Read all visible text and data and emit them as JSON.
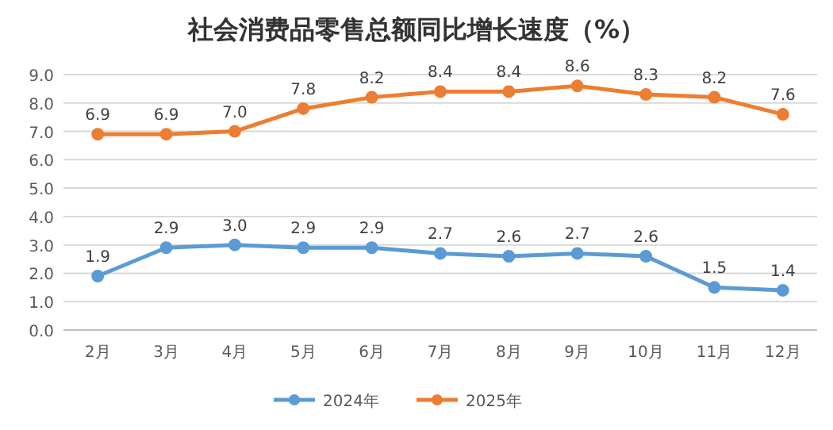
{
  "chart_data": {
    "type": "line",
    "title": "社会消费品零售总额同比增长速度（%）",
    "categories": [
      "2月",
      "3月",
      "4月",
      "5月",
      "6月",
      "7月",
      "8月",
      "9月",
      "10月",
      "11月",
      "12月"
    ],
    "series": [
      {
        "name": "2024年",
        "color": "#5b9bd5",
        "values": [
          1.9,
          2.9,
          3.0,
          2.9,
          2.9,
          2.7,
          2.6,
          2.7,
          2.6,
          1.5,
          1.4
        ],
        "value_labels": [
          "1.9",
          "2.9",
          "3.0",
          "2.9",
          "2.9",
          "2.7",
          "2.6",
          "2.7",
          "2.6",
          "1.5",
          "1.4"
        ]
      },
      {
        "name": "2025年",
        "color": "#ed7d31",
        "values": [
          6.9,
          6.9,
          7.0,
          7.8,
          8.2,
          8.4,
          8.4,
          8.6,
          8.3,
          8.2,
          7.6
        ],
        "value_labels": [
          "6.9",
          "6.9",
          "7.0",
          "7.8",
          "8.2",
          "8.4",
          "8.4",
          "8.6",
          "8.3",
          "8.2",
          "7.6"
        ]
      }
    ],
    "ylim": [
      0,
      9
    ],
    "yticks": [
      {
        "value": 0,
        "label": "0.0"
      },
      {
        "value": 1,
        "label": "1.0"
      },
      {
        "value": 2,
        "label": "2.0"
      },
      {
        "value": 3,
        "label": "3.0"
      },
      {
        "value": 4,
        "label": "4.0"
      },
      {
        "value": 5,
        "label": "5.0"
      },
      {
        "value": 6,
        "label": "6.0"
      },
      {
        "value": 7,
        "label": "7.0"
      },
      {
        "value": 8,
        "label": "8.0"
      },
      {
        "value": 9,
        "label": "9.0"
      }
    ],
    "grid": "y",
    "legend": "bottom",
    "marker": "circle",
    "line_style": "solid"
  }
}
